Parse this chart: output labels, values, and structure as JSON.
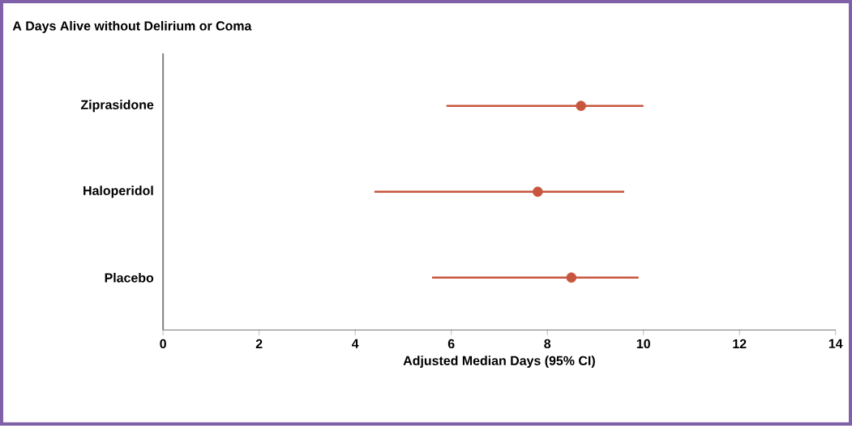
{
  "chart_data": {
    "type": "scatter",
    "orientation": "horizontal",
    "title": "**A** Days Alive without Delirium or Coma",
    "xlabel": "Adjusted Median Days (95% CI)",
    "categories": [
      "Ziprasidone",
      "Haloperidol",
      "Placebo"
    ],
    "values": [
      8.7,
      7.8,
      8.5
    ],
    "errors": [
      [
        5.9,
        10.0
      ],
      [
        4.4,
        9.6
      ],
      [
        5.6,
        9.9
      ]
    ],
    "color": "#c8553d",
    "marker": "circle",
    "grid": false,
    "xlim": [
      0,
      14
    ],
    "xticks": [
      0,
      2,
      4,
      6,
      8,
      10,
      12,
      14
    ]
  }
}
